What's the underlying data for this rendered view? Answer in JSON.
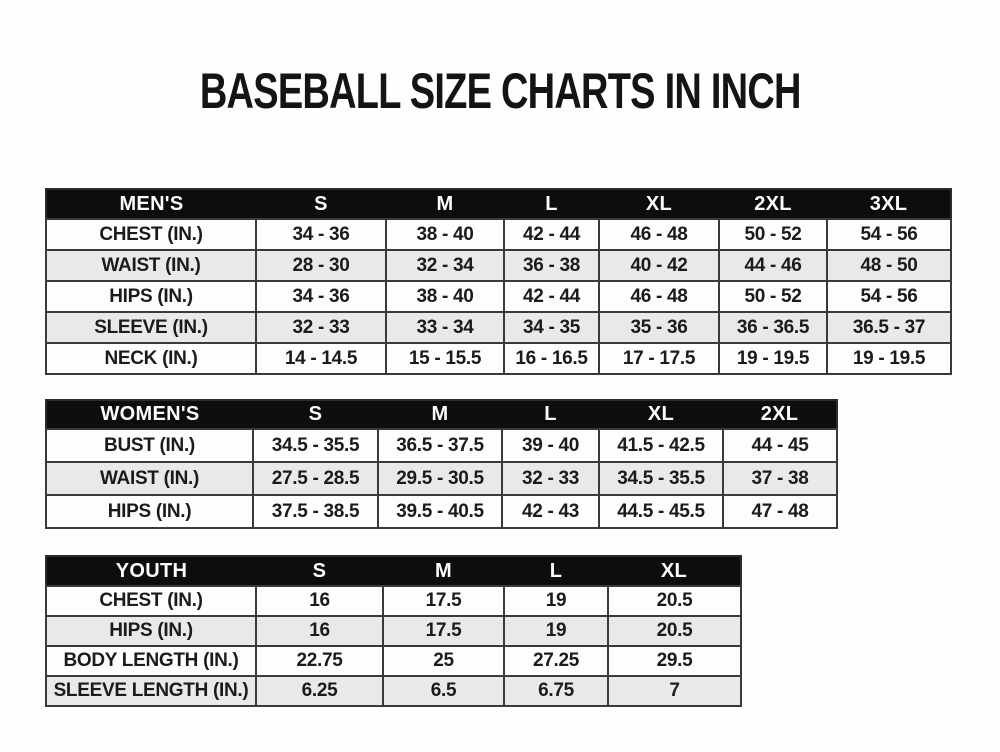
{
  "title": "BASEBALL SIZE CHARTS IN INCH",
  "colors": {
    "header_band": "#0d0d0d",
    "header_text": "#fbfbfb",
    "row_alt": "#e9e9e9",
    "row_plain": "#fdfdfd",
    "grid_border": "#3a3a3a",
    "text": "#1b1b1b",
    "background": "#ffffff"
  },
  "chart_data": [
    {
      "type": "table",
      "name": "mens",
      "columns": [
        "MEN'S",
        "S",
        "M",
        "L",
        "XL",
        "2XL",
        "3XL"
      ],
      "rows": [
        [
          "CHEST (IN.)",
          "34 - 36",
          "38 - 40",
          "42 - 44",
          "46 - 48",
          "50 - 52",
          "54 - 56"
        ],
        [
          "WAIST (IN.)",
          "28 - 30",
          "32 - 34",
          "36 - 38",
          "40 - 42",
          "44 - 46",
          "48 - 50"
        ],
        [
          "HIPS (IN.)",
          "34 - 36",
          "38 - 40",
          "42 - 44",
          "46 - 48",
          "50 - 52",
          "54 - 56"
        ],
        [
          "SLEEVE (IN.)",
          "32 - 33",
          "33 - 34",
          "34 - 35",
          "35 - 36",
          "36 - 36.5",
          "36.5 - 37"
        ],
        [
          "NECK (IN.)",
          "14 - 14.5",
          "15 - 15.5",
          "16 - 16.5",
          "17 - 17.5",
          "19 - 19.5",
          "19 - 19.5"
        ]
      ]
    },
    {
      "type": "table",
      "name": "womens",
      "columns": [
        "WOMEN'S",
        "S",
        "M",
        "L",
        "XL",
        "2XL"
      ],
      "rows": [
        [
          "BUST (IN.)",
          "34.5 - 35.5",
          "36.5 - 37.5",
          "39 - 40",
          "41.5 - 42.5",
          "44 - 45"
        ],
        [
          "WAIST (IN.)",
          "27.5 - 28.5",
          "29.5 - 30.5",
          "32 - 33",
          "34.5 - 35.5",
          "37 - 38"
        ],
        [
          "HIPS (IN.)",
          "37.5 - 38.5",
          "39.5 - 40.5",
          "42 - 43",
          "44.5 - 45.5",
          "47 - 48"
        ]
      ]
    },
    {
      "type": "table",
      "name": "youth",
      "columns": [
        "YOUTH",
        "S",
        "M",
        "L",
        "XL"
      ],
      "rows": [
        [
          "CHEST (IN.)",
          "16",
          "17.5",
          "19",
          "20.5"
        ],
        [
          "HIPS (IN.)",
          "16",
          "17.5",
          "19",
          "20.5"
        ],
        [
          "BODY LENGTH (IN.)",
          "22.75",
          "25",
          "27.25",
          "29.5"
        ],
        [
          "SLEEVE LENGTH (IN.)",
          "6.25",
          "6.5",
          "6.75",
          "7"
        ]
      ]
    }
  ]
}
